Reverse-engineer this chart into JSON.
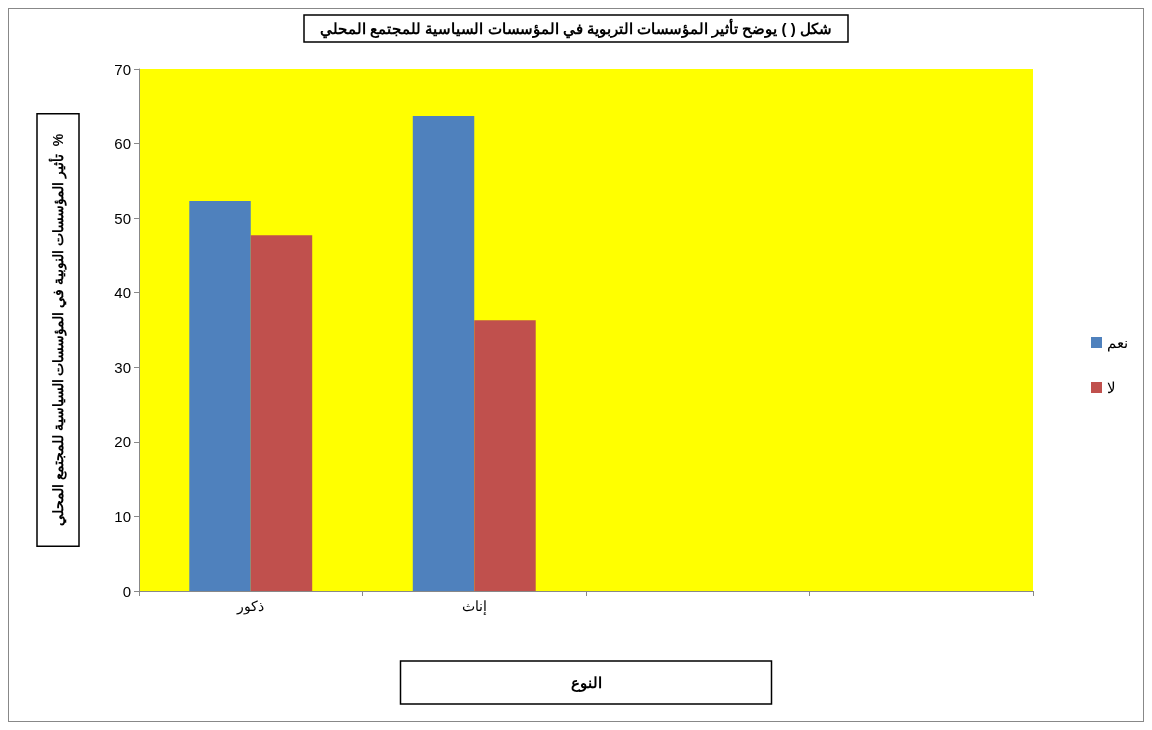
{
  "chart_data": {
    "type": "bar",
    "title": "شكل ( ) يوضح تأثير المؤسسات التربوية في المؤسسات السياسية للمجتمع المحلي",
    "xlabel": "النوع",
    "ylabel": "تأثير المؤسسات النوبية في المؤسسات السياسية للمجتمع المحلي  %",
    "categories": [
      "ذكور",
      "إناث",
      null,
      null
    ],
    "series": [
      {
        "name": "نعم",
        "color": "#4f81bd",
        "values": [
          52.3,
          63.7,
          null,
          null
        ]
      },
      {
        "name": "لا",
        "color": "#c0504d",
        "values": [
          47.7,
          36.3,
          null,
          null
        ]
      }
    ],
    "ylim": [
      0,
      70
    ],
    "yticks": [
      0,
      10,
      20,
      30,
      40,
      50,
      60,
      70
    ],
    "grid": false,
    "legend": "right"
  }
}
